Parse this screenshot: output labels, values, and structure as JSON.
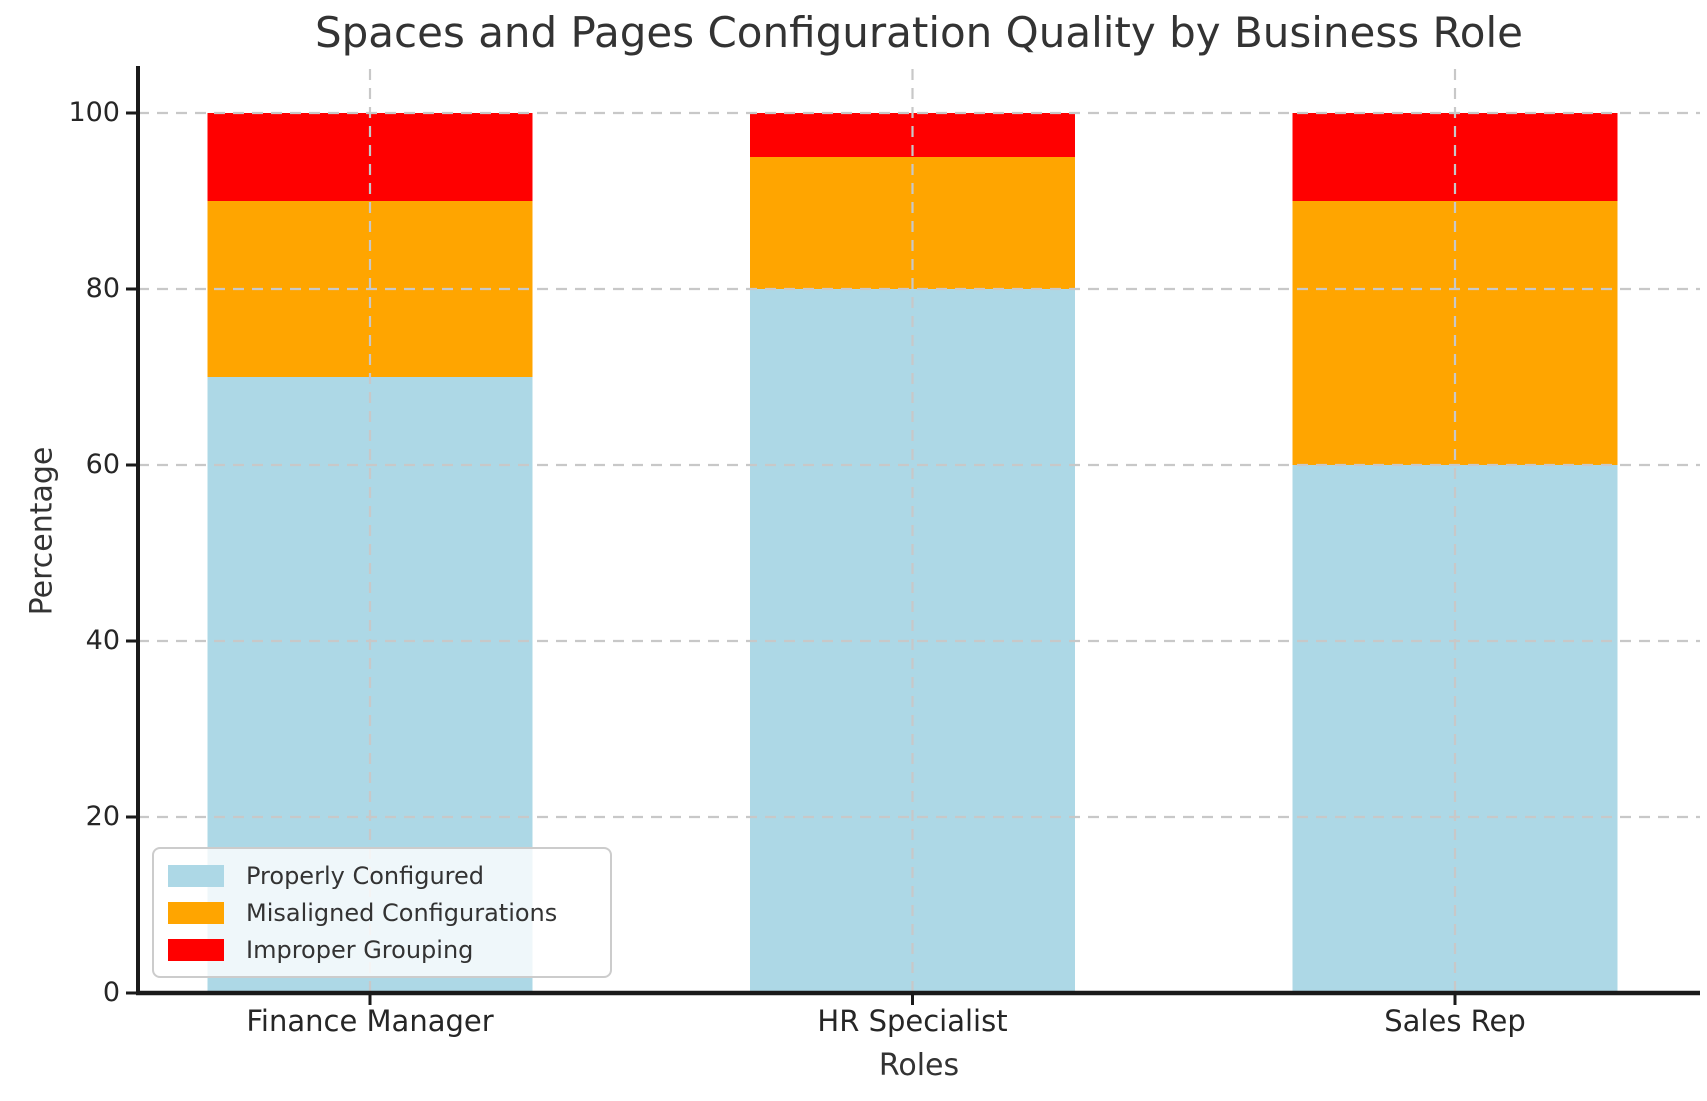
{
  "chart_data": {
    "type": "bar",
    "stacked": true,
    "title": "Spaces and Pages Configuration Quality by Business Role",
    "xlabel": "Roles",
    "ylabel": "Percentage",
    "categories": [
      "Finance Manager",
      "HR Specialist",
      "Sales Rep"
    ],
    "series": [
      {
        "name": "Properly Configured",
        "color": "#ADD8E6",
        "values": [
          70,
          80,
          60
        ]
      },
      {
        "name": "Misaligned Configurations",
        "color": "#FFA500",
        "values": [
          20,
          15,
          30
        ]
      },
      {
        "name": "Improper Grouping",
        "color": "#FF0000",
        "values": [
          10,
          5,
          10
        ]
      }
    ],
    "yticks": [
      0,
      20,
      40,
      60,
      80,
      100
    ],
    "ylim": [
      0,
      105
    ],
    "grid": "dashed",
    "grid_color": "#c8c8c8",
    "axis_color": "#1a1a1a",
    "legend_position": "lower left",
    "background": "#ffffff"
  }
}
